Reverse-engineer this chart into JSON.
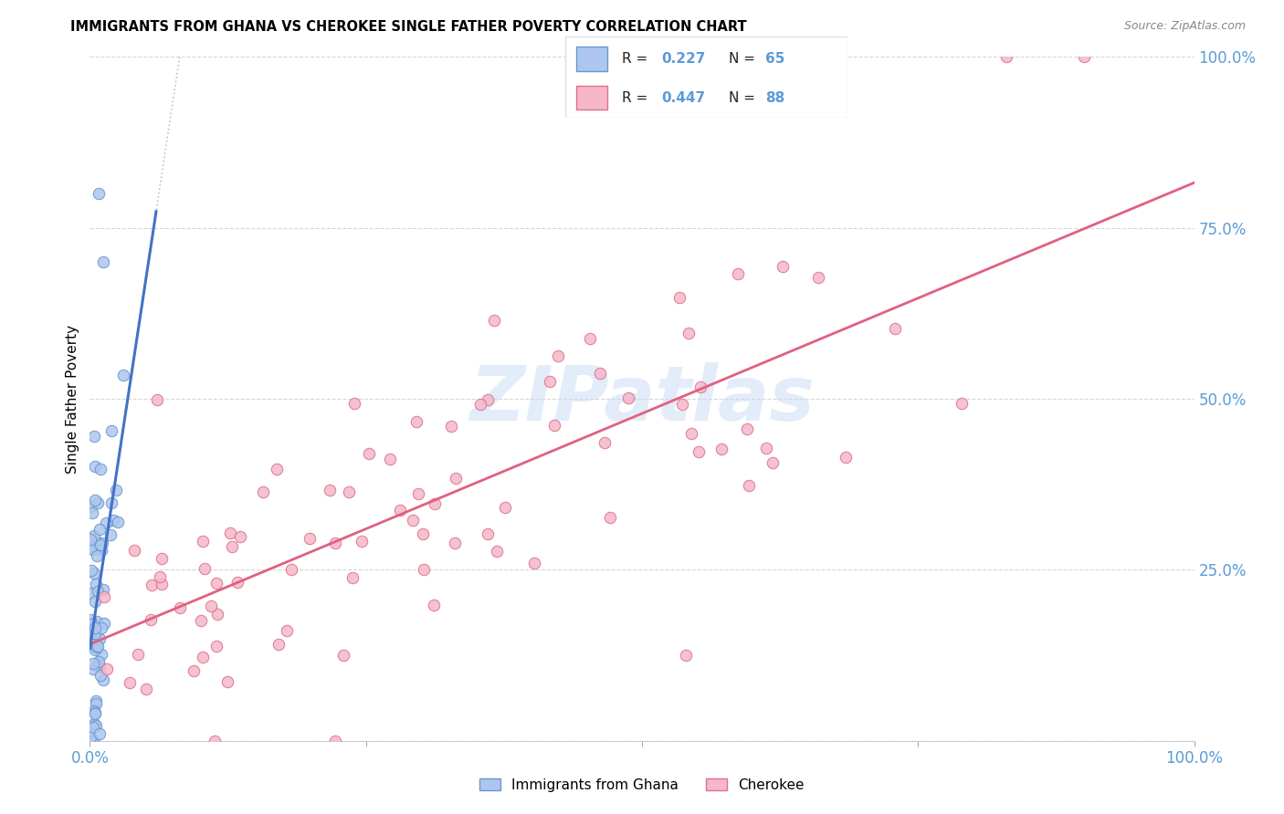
{
  "title": "IMMIGRANTS FROM GHANA VS CHEROKEE SINGLE FATHER POVERTY CORRELATION CHART",
  "source": "Source: ZipAtlas.com",
  "ylabel": "Single Father Poverty",
  "legend_label1": "Immigrants from Ghana",
  "legend_label2": "Cherokee",
  "R1": 0.227,
  "N1": 65,
  "R2": 0.447,
  "N2": 88,
  "color_ghana_fill": "#aec6ef",
  "color_ghana_edge": "#6699cc",
  "color_cherokee_fill": "#f4b8c8",
  "color_cherokee_edge": "#e07090",
  "color_ghana_line": "#4472c4",
  "color_cherokee_line": "#e06080",
  "color_grid": "#cccccc",
  "watermark_color": "#c8daf5",
  "bg_color": "#ffffff",
  "xlim": [
    0,
    1.0
  ],
  "ylim": [
    0,
    1.0
  ]
}
